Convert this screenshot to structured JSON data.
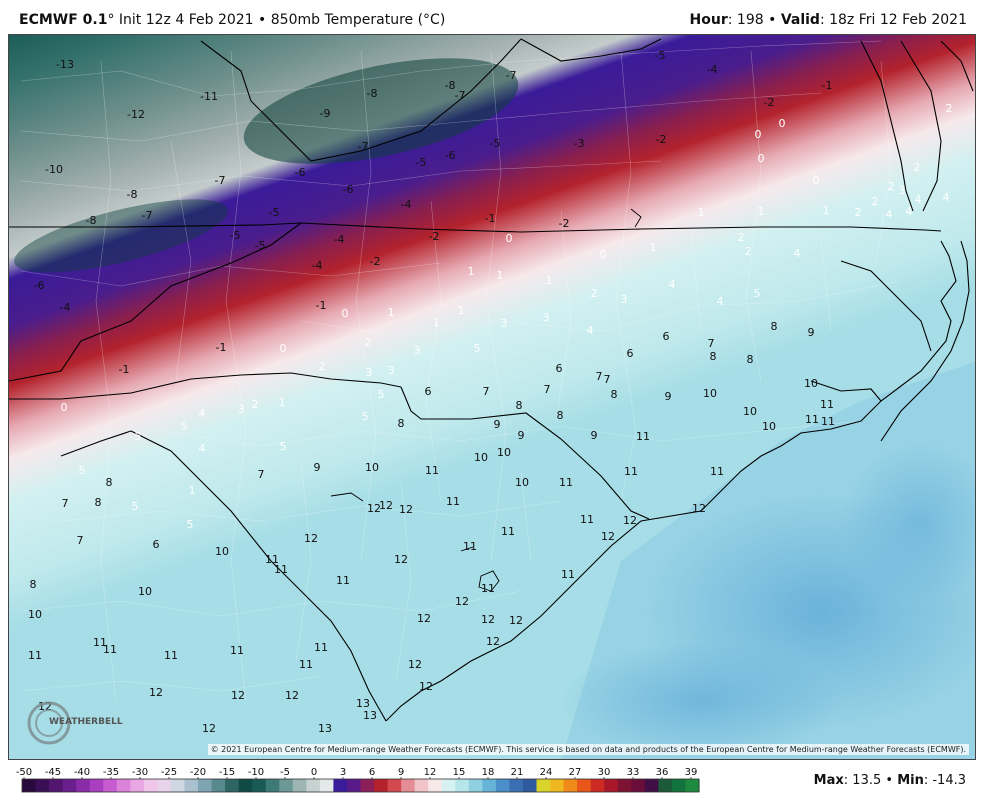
{
  "header": {
    "model": "ECMWF 0.1",
    "init_text": "° Init 12z 4 Feb 2021",
    "sep": " • ",
    "field": "850mb Temperature (°C)",
    "hour_label": "Hour",
    "hour_value": ": 198",
    "valid_label": "Valid",
    "valid_value": ": 18z Fri 12 Feb 2021"
  },
  "map": {
    "credit": "© 2021 European Centre for Medium-range Weather Forecasts (ECMWF). This service is based on data and products of the European Centre for Medium-range Weather Forecasts (ECMWF).",
    "logo": "WEATHERBELL",
    "labels": [
      [
        "-13",
        64,
        67
      ],
      [
        "-11",
        208,
        99
      ],
      [
        "-12",
        135,
        117
      ],
      [
        "-10",
        53,
        172
      ],
      [
        "-8",
        131,
        197
      ],
      [
        "-7",
        146,
        218
      ],
      [
        "-8",
        90,
        223
      ],
      [
        "-7",
        219,
        183
      ],
      [
        "-9",
        324,
        116
      ],
      [
        "-8",
        371,
        96
      ],
      [
        "-8",
        449,
        88
      ],
      [
        "-7",
        459,
        98
      ],
      [
        "-7",
        510,
        78
      ],
      [
        "-7",
        362,
        149
      ],
      [
        "-6",
        299,
        175
      ],
      [
        "-6",
        347,
        192
      ],
      [
        "-5",
        420,
        165
      ],
      [
        "-6",
        449,
        158
      ],
      [
        "-5",
        494,
        146
      ],
      [
        "-5",
        273,
        215
      ],
      [
        "-4",
        405,
        207
      ],
      [
        "-3",
        578,
        146
      ],
      [
        "-2",
        660,
        142
      ],
      [
        "-5",
        659,
        58
      ],
      [
        "-4",
        711,
        72
      ],
      [
        "-2",
        768,
        105
      ],
      [
        "-1",
        826,
        88
      ],
      [
        "-6",
        38,
        288
      ],
      [
        "-4",
        64,
        310
      ],
      [
        "-5",
        234,
        238
      ],
      [
        "-5",
        259,
        248
      ],
      [
        "-4",
        338,
        242
      ],
      [
        "-4",
        316,
        268
      ],
      [
        "-2",
        374,
        264
      ],
      [
        "-2",
        433,
        239
      ],
      [
        "-1",
        489,
        221
      ],
      [
        "-2",
        563,
        226
      ],
      [
        "-1",
        320,
        308
      ],
      [
        "-1",
        220,
        350
      ],
      [
        "-1",
        123,
        372
      ],
      [
        "0",
        757,
        137
      ],
      [
        "0",
        781,
        126
      ],
      [
        "0",
        760,
        161
      ],
      [
        "0",
        815,
        183
      ],
      [
        "0",
        508,
        241
      ],
      [
        "0",
        602,
        257
      ],
      [
        "0",
        282,
        351
      ],
      [
        "0",
        344,
        316
      ],
      [
        "0",
        63,
        410
      ],
      [
        "1",
        700,
        215
      ],
      [
        "1",
        760,
        214
      ],
      [
        "1",
        825,
        213
      ],
      [
        "1",
        652,
        250
      ],
      [
        "1",
        470,
        274
      ],
      [
        "1",
        499,
        278
      ],
      [
        "1",
        548,
        283
      ],
      [
        "1",
        390,
        315
      ],
      [
        "1",
        460,
        313
      ],
      [
        "1",
        435,
        325
      ],
      [
        "1",
        281,
        405
      ],
      [
        "1",
        191,
        493
      ],
      [
        "2",
        948,
        111
      ],
      [
        "2",
        916,
        170
      ],
      [
        "2",
        890,
        189
      ],
      [
        "2",
        857,
        215
      ],
      [
        "2",
        874,
        204
      ],
      [
        "2",
        740,
        240
      ],
      [
        "2",
        747,
        254
      ],
      [
        "2",
        593,
        296
      ],
      [
        "2",
        367,
        345
      ],
      [
        "2",
        321,
        369
      ],
      [
        "2",
        254,
        407
      ],
      [
        "3",
        901,
        193
      ],
      [
        "3",
        623,
        302
      ],
      [
        "3",
        545,
        320
      ],
      [
        "3",
        503,
        326
      ],
      [
        "3",
        416,
        353
      ],
      [
        "3",
        368,
        375
      ],
      [
        "3",
        390,
        373
      ],
      [
        "3",
        240,
        412
      ],
      [
        "4",
        908,
        214
      ],
      [
        "4",
        888,
        217
      ],
      [
        "4",
        917,
        202
      ],
      [
        "4",
        945,
        200
      ],
      [
        "4",
        796,
        256
      ],
      [
        "4",
        671,
        287
      ],
      [
        "4",
        719,
        304
      ],
      [
        "4",
        589,
        333
      ],
      [
        "4",
        201,
        416
      ],
      [
        "4",
        201,
        451
      ],
      [
        "5",
        756,
        296
      ],
      [
        "5",
        476,
        351
      ],
      [
        "5",
        380,
        397
      ],
      [
        "5",
        364,
        419
      ],
      [
        "5",
        282,
        449
      ],
      [
        "5",
        183,
        429
      ],
      [
        "5",
        137,
        439
      ],
      [
        "5",
        81,
        473
      ],
      [
        "5",
        134,
        509
      ],
      [
        "5",
        189,
        527
      ],
      [
        "6",
        629,
        356
      ],
      [
        "6",
        665,
        339
      ],
      [
        "6",
        558,
        371
      ],
      [
        "6",
        427,
        394
      ],
      [
        "6",
        155,
        547
      ],
      [
        "7",
        710,
        346
      ],
      [
        "7",
        598,
        379
      ],
      [
        "7",
        606,
        382
      ],
      [
        "7",
        546,
        392
      ],
      [
        "7",
        485,
        394
      ],
      [
        "7",
        260,
        477
      ],
      [
        "7",
        64,
        506
      ],
      [
        "7",
        79,
        543
      ],
      [
        "8",
        773,
        329
      ],
      [
        "8",
        712,
        359
      ],
      [
        "8",
        749,
        362
      ],
      [
        "8",
        613,
        397
      ],
      [
        "8",
        518,
        408
      ],
      [
        "8",
        559,
        418
      ],
      [
        "8",
        400,
        426
      ],
      [
        "8",
        108,
        485
      ],
      [
        "8",
        97,
        505
      ],
      [
        "8",
        32,
        587
      ],
      [
        "9",
        810,
        335
      ],
      [
        "9",
        667,
        399
      ],
      [
        "9",
        496,
        427
      ],
      [
        "9",
        520,
        438
      ],
      [
        "9",
        593,
        438
      ],
      [
        "9",
        316,
        470
      ],
      [
        "10",
        709,
        396
      ],
      [
        "10",
        749,
        414
      ],
      [
        "10",
        810,
        386
      ],
      [
        "10",
        768,
        429
      ],
      [
        "10",
        371,
        470
      ],
      [
        "10",
        480,
        460
      ],
      [
        "10",
        503,
        455
      ],
      [
        "10",
        521,
        485
      ],
      [
        "10",
        221,
        554
      ],
      [
        "10",
        144,
        594
      ],
      [
        "10",
        34,
        617
      ],
      [
        "11",
        826,
        407
      ],
      [
        "11",
        811,
        422
      ],
      [
        "11",
        827,
        424
      ],
      [
        "11",
        642,
        439
      ],
      [
        "11",
        630,
        474
      ],
      [
        "11",
        716,
        474
      ],
      [
        "11",
        431,
        473
      ],
      [
        "11",
        565,
        485
      ],
      [
        "11",
        452,
        504
      ],
      [
        "11",
        507,
        534
      ],
      [
        "11",
        586,
        522
      ],
      [
        "11",
        469,
        549
      ],
      [
        "11",
        487,
        591
      ],
      [
        "11",
        567,
        577
      ],
      [
        "11",
        271,
        562
      ],
      [
        "11",
        280,
        572
      ],
      [
        "11",
        342,
        583
      ],
      [
        "11",
        99,
        645
      ],
      [
        "11",
        109,
        652
      ],
      [
        "11",
        34,
        658
      ],
      [
        "11",
        170,
        658
      ],
      [
        "11",
        236,
        653
      ],
      [
        "11",
        320,
        650
      ],
      [
        "11",
        305,
        667
      ],
      [
        "12",
        698,
        511
      ],
      [
        "12",
        629,
        523
      ],
      [
        "12",
        607,
        539
      ],
      [
        "12",
        385,
        508
      ],
      [
        "12",
        405,
        512
      ],
      [
        "12",
        373,
        511
      ],
      [
        "12",
        310,
        541
      ],
      [
        "12",
        400,
        562
      ],
      [
        "12",
        461,
        604
      ],
      [
        "12",
        423,
        621
      ],
      [
        "12",
        487,
        622
      ],
      [
        "12",
        515,
        623
      ],
      [
        "12",
        492,
        644
      ],
      [
        "12",
        414,
        667
      ],
      [
        "12",
        425,
        689
      ],
      [
        "12",
        155,
        695
      ],
      [
        "12",
        237,
        698
      ],
      [
        "12",
        291,
        698
      ],
      [
        "12",
        44,
        709
      ],
      [
        "12",
        208,
        731
      ],
      [
        "13",
        362,
        706
      ],
      [
        "13",
        369,
        718
      ],
      [
        "13",
        324,
        731
      ]
    ]
  },
  "legend": {
    "ticks": [
      "-50",
      "-45",
      "-40",
      "-35",
      "-30",
      "-25",
      "-20",
      "-15",
      "-10",
      "-5",
      "0",
      "3",
      "6",
      "9",
      "12",
      "15",
      "18",
      "21",
      "24",
      "27",
      "30",
      "33",
      "36",
      "39"
    ],
    "max_label": "Max",
    "max_value": ": 13.5",
    "sep": " • ",
    "min_label": "Min",
    "min_value": ": -14.3"
  },
  "colors": {
    "teal_dark": "#0e4f4a",
    "gray": "#9aa7a6",
    "purple": "#3a1b99",
    "red": "#b0202c",
    "pink": "#e9b6bd",
    "pale_cyan": "#c4ecee",
    "blue": "#6cb4dc"
  }
}
